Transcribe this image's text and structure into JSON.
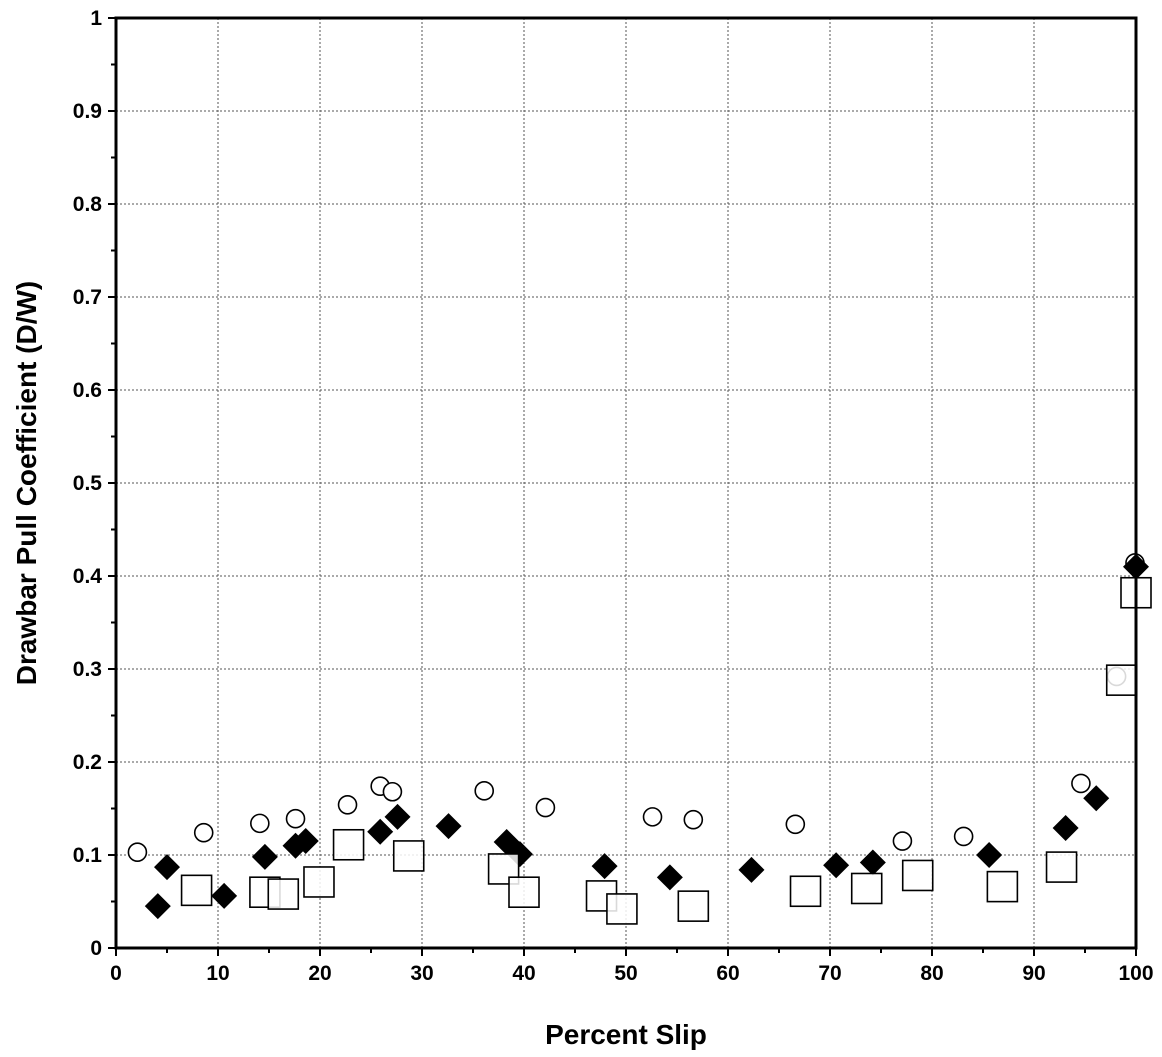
{
  "chart_data": {
    "type": "scatter",
    "xlabel": "Percent Slip",
    "ylabel": "Drawbar Pull Coefficient (D/W)",
    "xlim": [
      0,
      100
    ],
    "ylim": [
      0,
      1
    ],
    "xticks": [
      0,
      10,
      20,
      30,
      40,
      50,
      60,
      70,
      80,
      90,
      100
    ],
    "yticks": [
      0,
      0.1,
      0.2,
      0.3,
      0.4,
      0.5,
      0.6,
      0.7,
      0.8,
      0.9,
      1
    ],
    "ytick_labels": [
      "0",
      "0.1",
      "0.2",
      "0.3",
      "0.4",
      "0.5",
      "0.6",
      "0.7",
      "0.8",
      "0.9",
      "1"
    ],
    "grid": true,
    "colors": {
      "marker": "#000000",
      "grid": "#555555"
    },
    "series": [
      {
        "marker": "open-circle",
        "points": [
          [
            2.1,
            0.103
          ],
          [
            8.6,
            0.124
          ],
          [
            14.1,
            0.134
          ],
          [
            17.6,
            0.139
          ],
          [
            22.7,
            0.154
          ],
          [
            25.9,
            0.174
          ],
          [
            27.1,
            0.168
          ],
          [
            36.1,
            0.169
          ],
          [
            42.1,
            0.151
          ],
          [
            52.6,
            0.141
          ],
          [
            56.6,
            0.138
          ],
          [
            66.6,
            0.133
          ],
          [
            77.1,
            0.115
          ],
          [
            83.1,
            0.12
          ],
          [
            94.6,
            0.177
          ],
          [
            98.1,
            0.292
          ],
          [
            99.9,
            0.414
          ]
        ]
      },
      {
        "marker": "filled-diamond",
        "points": [
          [
            4.1,
            0.045
          ],
          [
            5.0,
            0.087
          ],
          [
            10.6,
            0.056
          ],
          [
            14.6,
            0.098
          ],
          [
            17.6,
            0.11
          ],
          [
            18.6,
            0.115
          ],
          [
            25.9,
            0.125
          ],
          [
            27.6,
            0.141
          ],
          [
            32.6,
            0.131
          ],
          [
            38.3,
            0.114
          ],
          [
            39.6,
            0.101
          ],
          [
            47.9,
            0.088
          ],
          [
            54.3,
            0.076
          ],
          [
            62.3,
            0.084
          ],
          [
            70.6,
            0.089
          ],
          [
            74.2,
            0.092
          ],
          [
            85.6,
            0.1
          ],
          [
            93.1,
            0.129
          ],
          [
            96.1,
            0.161
          ],
          [
            100.0,
            0.41
          ]
        ]
      },
      {
        "marker": "open-square",
        "points": [
          [
            7.9,
            0.062
          ],
          [
            14.6,
            0.06
          ],
          [
            16.4,
            0.058
          ],
          [
            19.9,
            0.071
          ],
          [
            22.8,
            0.111
          ],
          [
            28.7,
            0.099
          ],
          [
            38.0,
            0.085
          ],
          [
            40.0,
            0.06
          ],
          [
            47.6,
            0.056
          ],
          [
            49.6,
            0.042
          ],
          [
            56.6,
            0.045
          ],
          [
            67.6,
            0.061
          ],
          [
            73.6,
            0.064
          ],
          [
            78.6,
            0.078
          ],
          [
            86.9,
            0.066
          ],
          [
            92.7,
            0.087
          ],
          [
            98.6,
            0.288
          ],
          [
            100.0,
            0.382
          ]
        ]
      }
    ]
  }
}
